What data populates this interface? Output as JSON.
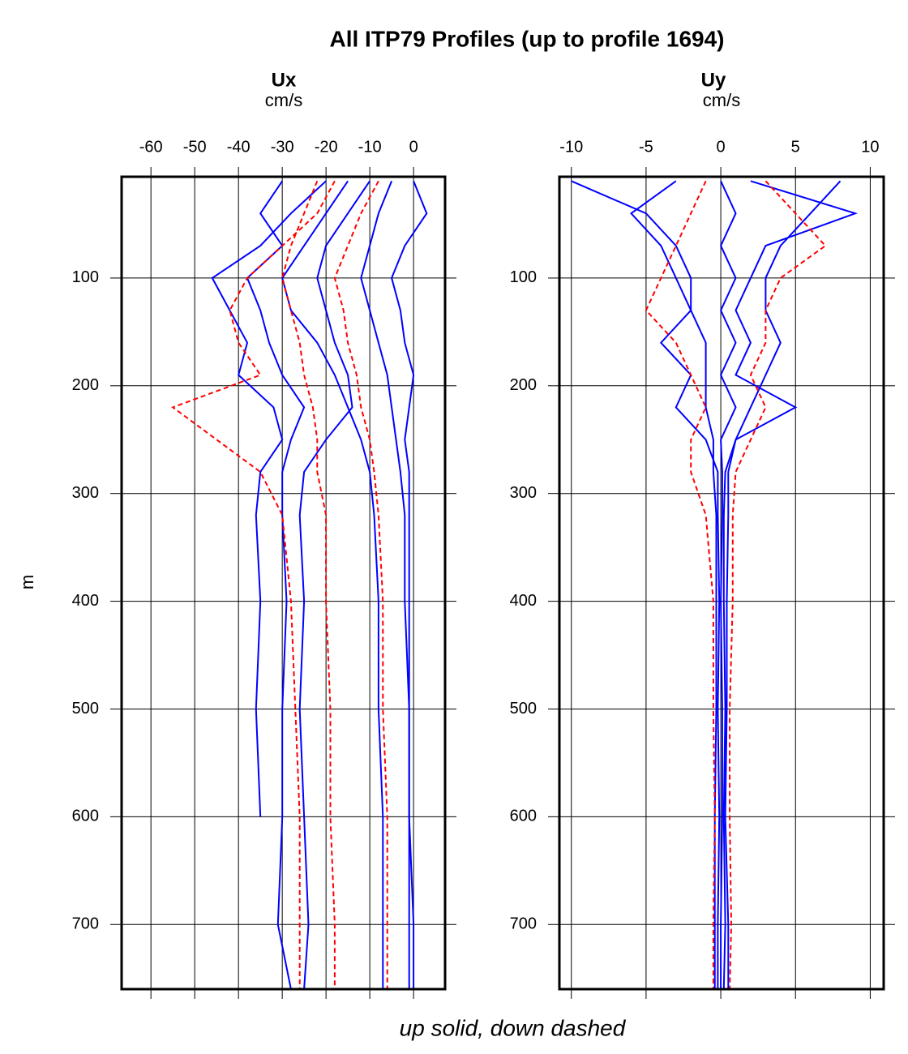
{
  "title": "All ITP79 Profiles (up to profile 1694)",
  "ylabel": "m",
  "xlabel": "up solid, down dashed",
  "chart_data": [
    {
      "type": "line",
      "title": "Ux",
      "subtitle": "cm/s",
      "xlim": [
        -66.7,
        7.2
      ],
      "xticks": [
        -60,
        -50,
        -40,
        -30,
        -20,
        -10,
        0
      ],
      "ylim": [
        760,
        6
      ],
      "yticks": [
        100,
        200,
        300,
        400,
        500,
        600,
        700
      ],
      "grid": true,
      "depth": [
        10,
        40,
        70,
        100,
        130,
        160,
        190,
        220,
        250,
        280,
        320,
        400,
        500,
        600,
        700,
        760
      ],
      "series": [
        {
          "color": "#0000ff",
          "style": "solid",
          "values": [
            -5,
            -8,
            -10,
            -12,
            -10,
            -8,
            -6,
            -5,
            -4,
            -3,
            -2,
            -2,
            -1,
            -1,
            -1,
            -1
          ]
        },
        {
          "color": "#0000ff",
          "style": "solid",
          "values": [
            -15,
            -20,
            -25,
            -30,
            -28,
            -22,
            -18,
            -15,
            -12,
            -10,
            -9,
            -8,
            -8,
            -7,
            -7,
            -7
          ]
        },
        {
          "color": "#0000ff",
          "style": "solid",
          "values": [
            -20,
            -28,
            -35,
            -46,
            -42,
            -38,
            -40,
            -32,
            -30,
            -35,
            -36,
            -35,
            -36,
            -35,
            null,
            null
          ]
        },
        {
          "color": "#0000ff",
          "style": "solid",
          "values": [
            0,
            3,
            -2,
            -5,
            -3,
            -2,
            0,
            -1,
            -2,
            -1,
            -1,
            -1,
            -1,
            -1,
            0,
            0
          ]
        },
        {
          "color": "#0000ff",
          "style": "solid",
          "values": [
            -10,
            -15,
            -20,
            -22,
            -20,
            -18,
            -15,
            -14,
            -20,
            -25,
            -26,
            -25,
            -26,
            -25,
            -24,
            -25
          ]
        },
        {
          "color": "#0000ff",
          "style": "solid",
          "values": [
            -30,
            -35,
            -30,
            -38,
            -35,
            -33,
            -30,
            -25,
            -28,
            -30,
            -30,
            -29,
            -30,
            -30,
            -31,
            -28
          ]
        },
        {
          "color": "#ff0000",
          "style": "dashed",
          "values": [
            -18,
            -22,
            -30,
            -38,
            -42,
            -40,
            -35,
            -55,
            -45,
            -35,
            -30,
            -28,
            -27,
            -26,
            -26,
            -26
          ]
        },
        {
          "color": "#ff0000",
          "style": "dashed",
          "values": [
            -8,
            -12,
            -15,
            -18,
            -16,
            -15,
            -13,
            -12,
            -10,
            -9,
            -8,
            -7,
            -7,
            -6,
            -6,
            -6
          ]
        },
        {
          "color": "#ff0000",
          "style": "dashed",
          "values": [
            -22,
            -25,
            -28,
            -30,
            -28,
            -26,
            -25,
            -23,
            -22,
            -22,
            -20,
            -20,
            -19,
            -19,
            -18,
            -18
          ]
        }
      ]
    },
    {
      "type": "line",
      "title": "Uy",
      "subtitle": "cm/s",
      "xlim": [
        -10.8,
        10.9
      ],
      "xticks": [
        -10,
        -5,
        0,
        5,
        10
      ],
      "ylim": [
        760,
        6
      ],
      "yticks": [
        100,
        200,
        300,
        400,
        500,
        600,
        700
      ],
      "grid": true,
      "depth": [
        10,
        40,
        70,
        100,
        130,
        160,
        190,
        220,
        250,
        280,
        320,
        400,
        500,
        600,
        700,
        760
      ],
      "series": [
        {
          "color": "#0000ff",
          "style": "solid",
          "values": [
            -10,
            -5,
            -3,
            -2,
            -2,
            -1,
            -1,
            -1,
            -0.5,
            -0.5,
            -0.3,
            -0.3,
            -0.3,
            -0.4,
            -0.4,
            -0.4
          ]
        },
        {
          "color": "#0000ff",
          "style": "solid",
          "values": [
            8,
            6,
            4,
            3,
            3,
            4,
            3,
            2,
            1,
            0.5,
            0.5,
            0.4,
            0.4,
            0.3,
            0.5,
            0.5
          ]
        },
        {
          "color": "#0000ff",
          "style": "solid",
          "values": [
            2,
            9,
            3,
            2,
            1,
            2,
            1,
            5,
            1,
            0.3,
            0.2,
            0.2,
            0.3,
            0.2,
            0.3,
            0.2
          ]
        },
        {
          "color": "#0000ff",
          "style": "solid",
          "values": [
            -3,
            -6,
            -4,
            -3,
            -2,
            -4,
            -2,
            -3,
            -1,
            -0.2,
            -0.2,
            -0.1,
            -0.2,
            -0.1,
            -0.2,
            -0.2
          ]
        },
        {
          "color": "#0000ff",
          "style": "solid",
          "values": [
            0,
            1,
            0,
            1,
            0,
            1,
            0,
            1,
            0,
            0.1,
            0.1,
            0,
            0.1,
            0.1,
            0,
            0
          ]
        },
        {
          "color": "#ff0000",
          "style": "dashed",
          "values": [
            -1,
            -2,
            -3,
            -4,
            -5,
            -3,
            -2,
            -1,
            -2,
            -2,
            -1,
            -0.5,
            -0.5,
            -0.4,
            -0.5,
            -0.5
          ]
        },
        {
          "color": "#ff0000",
          "style": "dashed",
          "values": [
            3,
            5,
            7,
            4,
            3,
            3,
            2,
            3,
            2,
            1,
            0.8,
            0.8,
            0.6,
            0.6,
            0.7,
            0.6
          ]
        }
      ]
    }
  ]
}
